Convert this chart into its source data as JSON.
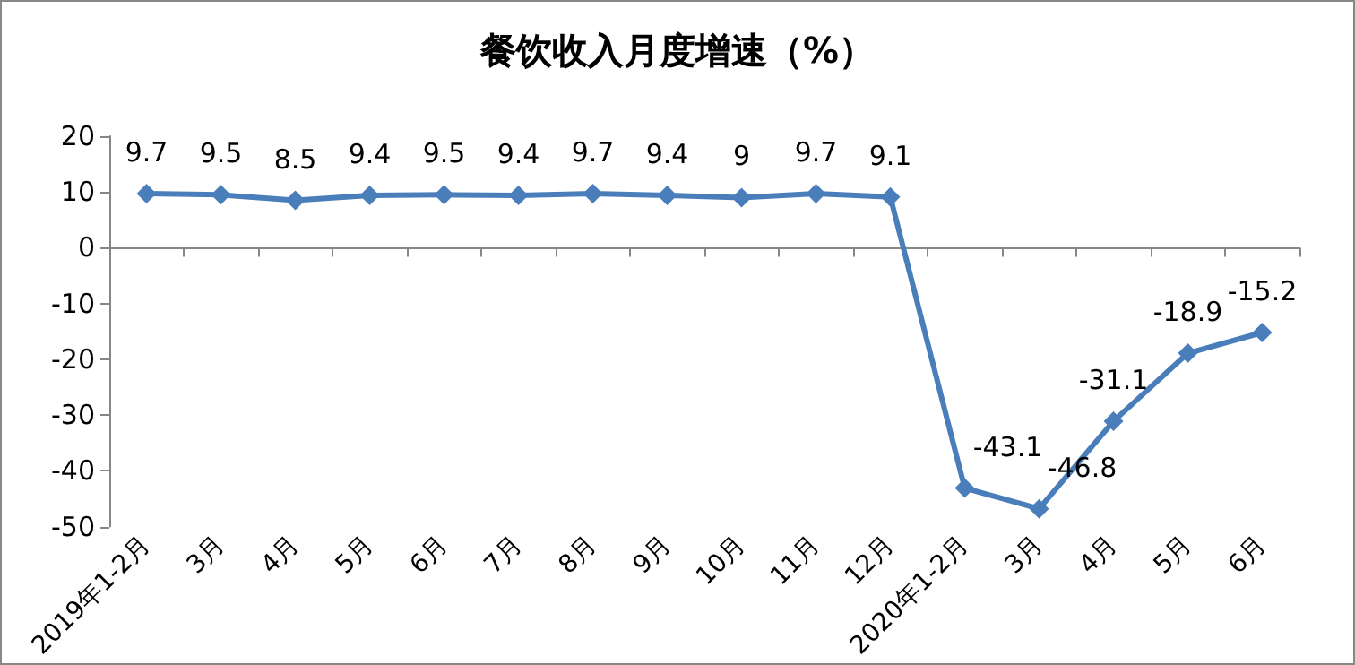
{
  "chart_data": {
    "type": "line",
    "title": "餐饮收入月度增速（%）",
    "categories": [
      "2019年1-2月",
      "3月",
      "4月",
      "5月",
      "6月",
      "7月",
      "8月",
      "9月",
      "10月",
      "11月",
      "12月",
      "2020年1-2月",
      "3月",
      "4月",
      "5月",
      "6月"
    ],
    "series": [
      {
        "color": "#4a7ebb",
        "values": [
          9.7,
          9.5,
          8.5,
          9.4,
          9.5,
          9.4,
          9.7,
          9.4,
          9,
          9.7,
          9.1,
          -43.1,
          -46.8,
          -31.1,
          -18.9,
          -15.2
        ]
      }
    ],
    "ylim": [
      -50,
      20
    ],
    "yticks": [
      -50,
      -40,
      -30,
      -20,
      -10,
      0,
      10,
      20
    ],
    "marker": "diamond",
    "line_style": "solid",
    "data_labels": true
  }
}
